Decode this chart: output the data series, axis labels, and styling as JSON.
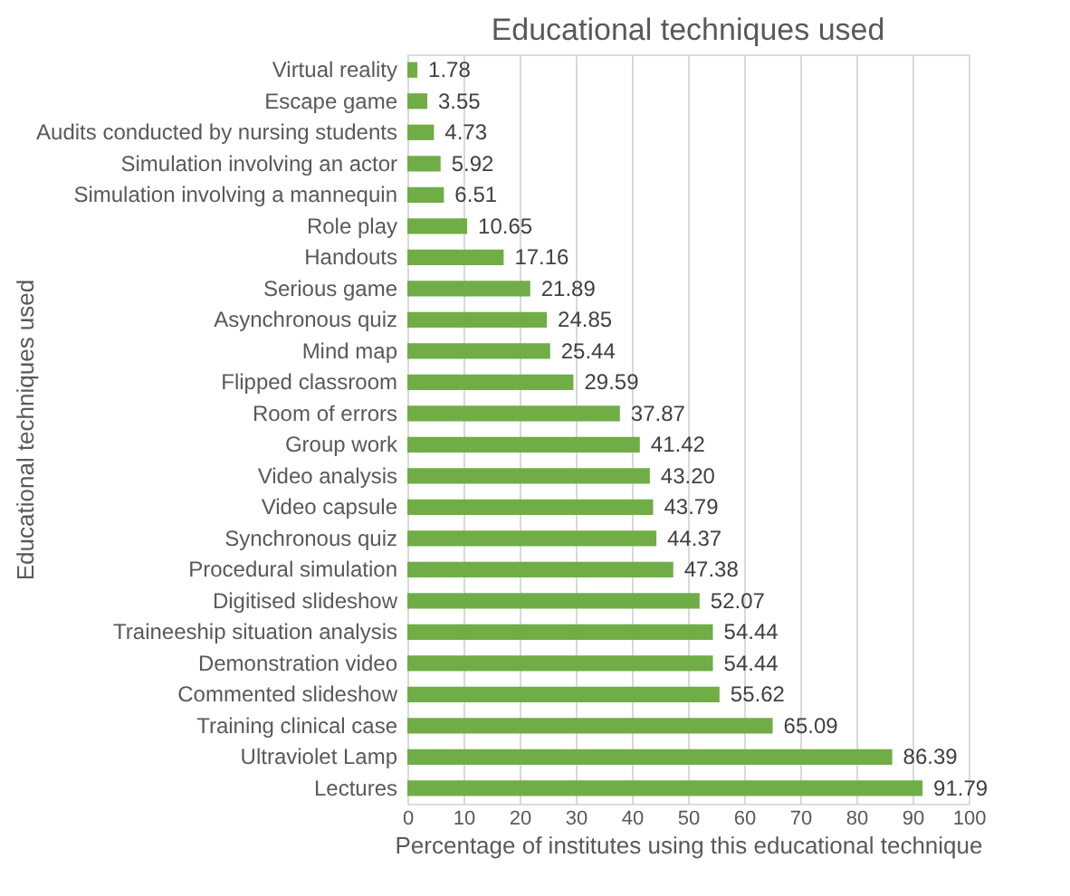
{
  "chart_data": {
    "type": "bar",
    "orientation": "horizontal",
    "title": "Educational techniques used",
    "xlabel": "Percentage of institutes using this educational technique",
    "ylabel": "Educational techniques used",
    "categories": [
      "Virtual reality",
      "Escape game",
      "Audits conducted by nursing students",
      "Simulation involving an actor",
      "Simulation involving a mannequin",
      "Role play",
      "Handouts",
      "Serious game",
      "Asynchronous quiz",
      "Mind map",
      "Flipped classroom",
      "Room of errors",
      "Group work",
      "Video analysis",
      "Video capsule",
      "Synchronous quiz",
      "Procedural simulation",
      "Digitised slideshow",
      "Traineeship situation analysis",
      "Demonstration video",
      "Commented slideshow",
      "Training clinical case",
      "Ultraviolet Lamp",
      "Lectures"
    ],
    "values": [
      1.78,
      3.55,
      4.73,
      5.92,
      6.51,
      10.65,
      17.16,
      21.89,
      24.85,
      25.44,
      29.59,
      37.87,
      41.42,
      43.2,
      43.79,
      44.37,
      47.38,
      52.07,
      54.44,
      54.44,
      55.62,
      65.09,
      86.39,
      91.79
    ],
    "value_labels": [
      "1.78",
      "3.55",
      "4.73",
      "5.92",
      "6.51",
      "10.65",
      "17.16",
      "21.89",
      "24.85",
      "25.44",
      "29.59",
      "37.87",
      "41.42",
      "43.20",
      "43.79",
      "44.37",
      "47.38",
      "52.07",
      "54.44",
      "54.44",
      "55.62",
      "65.09",
      "86.39",
      "91.79"
    ],
    "color": "#70ad47",
    "xlim": [
      0,
      100
    ],
    "xticks": [
      0,
      10,
      20,
      30,
      40,
      50,
      60,
      70,
      80,
      90,
      100
    ],
    "grid": "x"
  }
}
